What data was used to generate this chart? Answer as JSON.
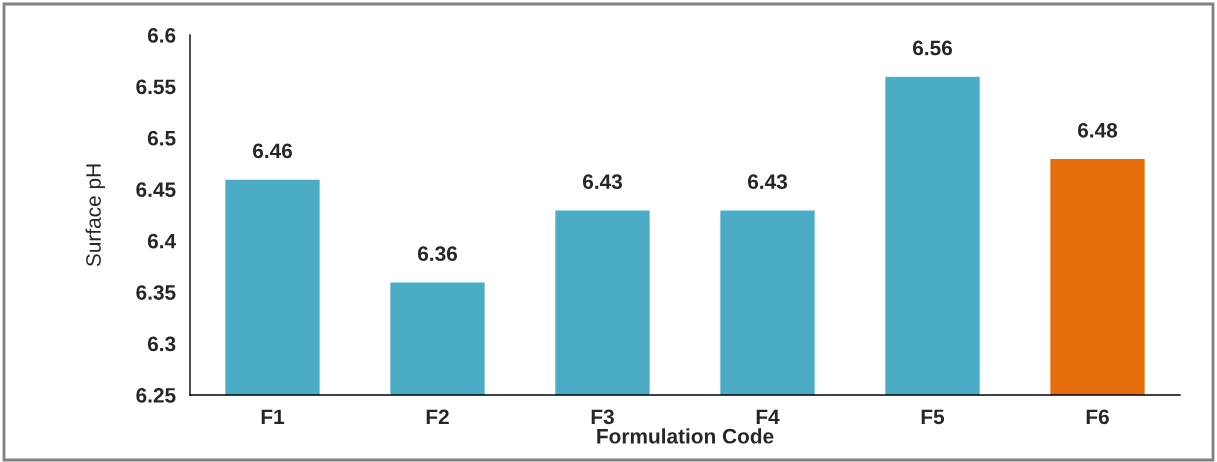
{
  "chart_data": {
    "type": "bar",
    "xlabel": "Formulation Code",
    "ylabel": "Surface pH",
    "categories": [
      "F1",
      "F2",
      "F3",
      "F4",
      "F5",
      "F6"
    ],
    "values": [
      6.46,
      6.36,
      6.43,
      6.43,
      6.56,
      6.48
    ],
    "colors": [
      "#4bacc6",
      "#4bacc6",
      "#4bacc6",
      "#4bacc6",
      "#4bacc6",
      "#e46c0a"
    ],
    "ylim": [
      6.25,
      6.6
    ],
    "yticks": [
      6.25,
      6.3,
      6.35,
      6.4,
      6.45,
      6.5,
      6.55,
      6.6
    ],
    "data_labels": true,
    "grid": false,
    "legend": false
  }
}
